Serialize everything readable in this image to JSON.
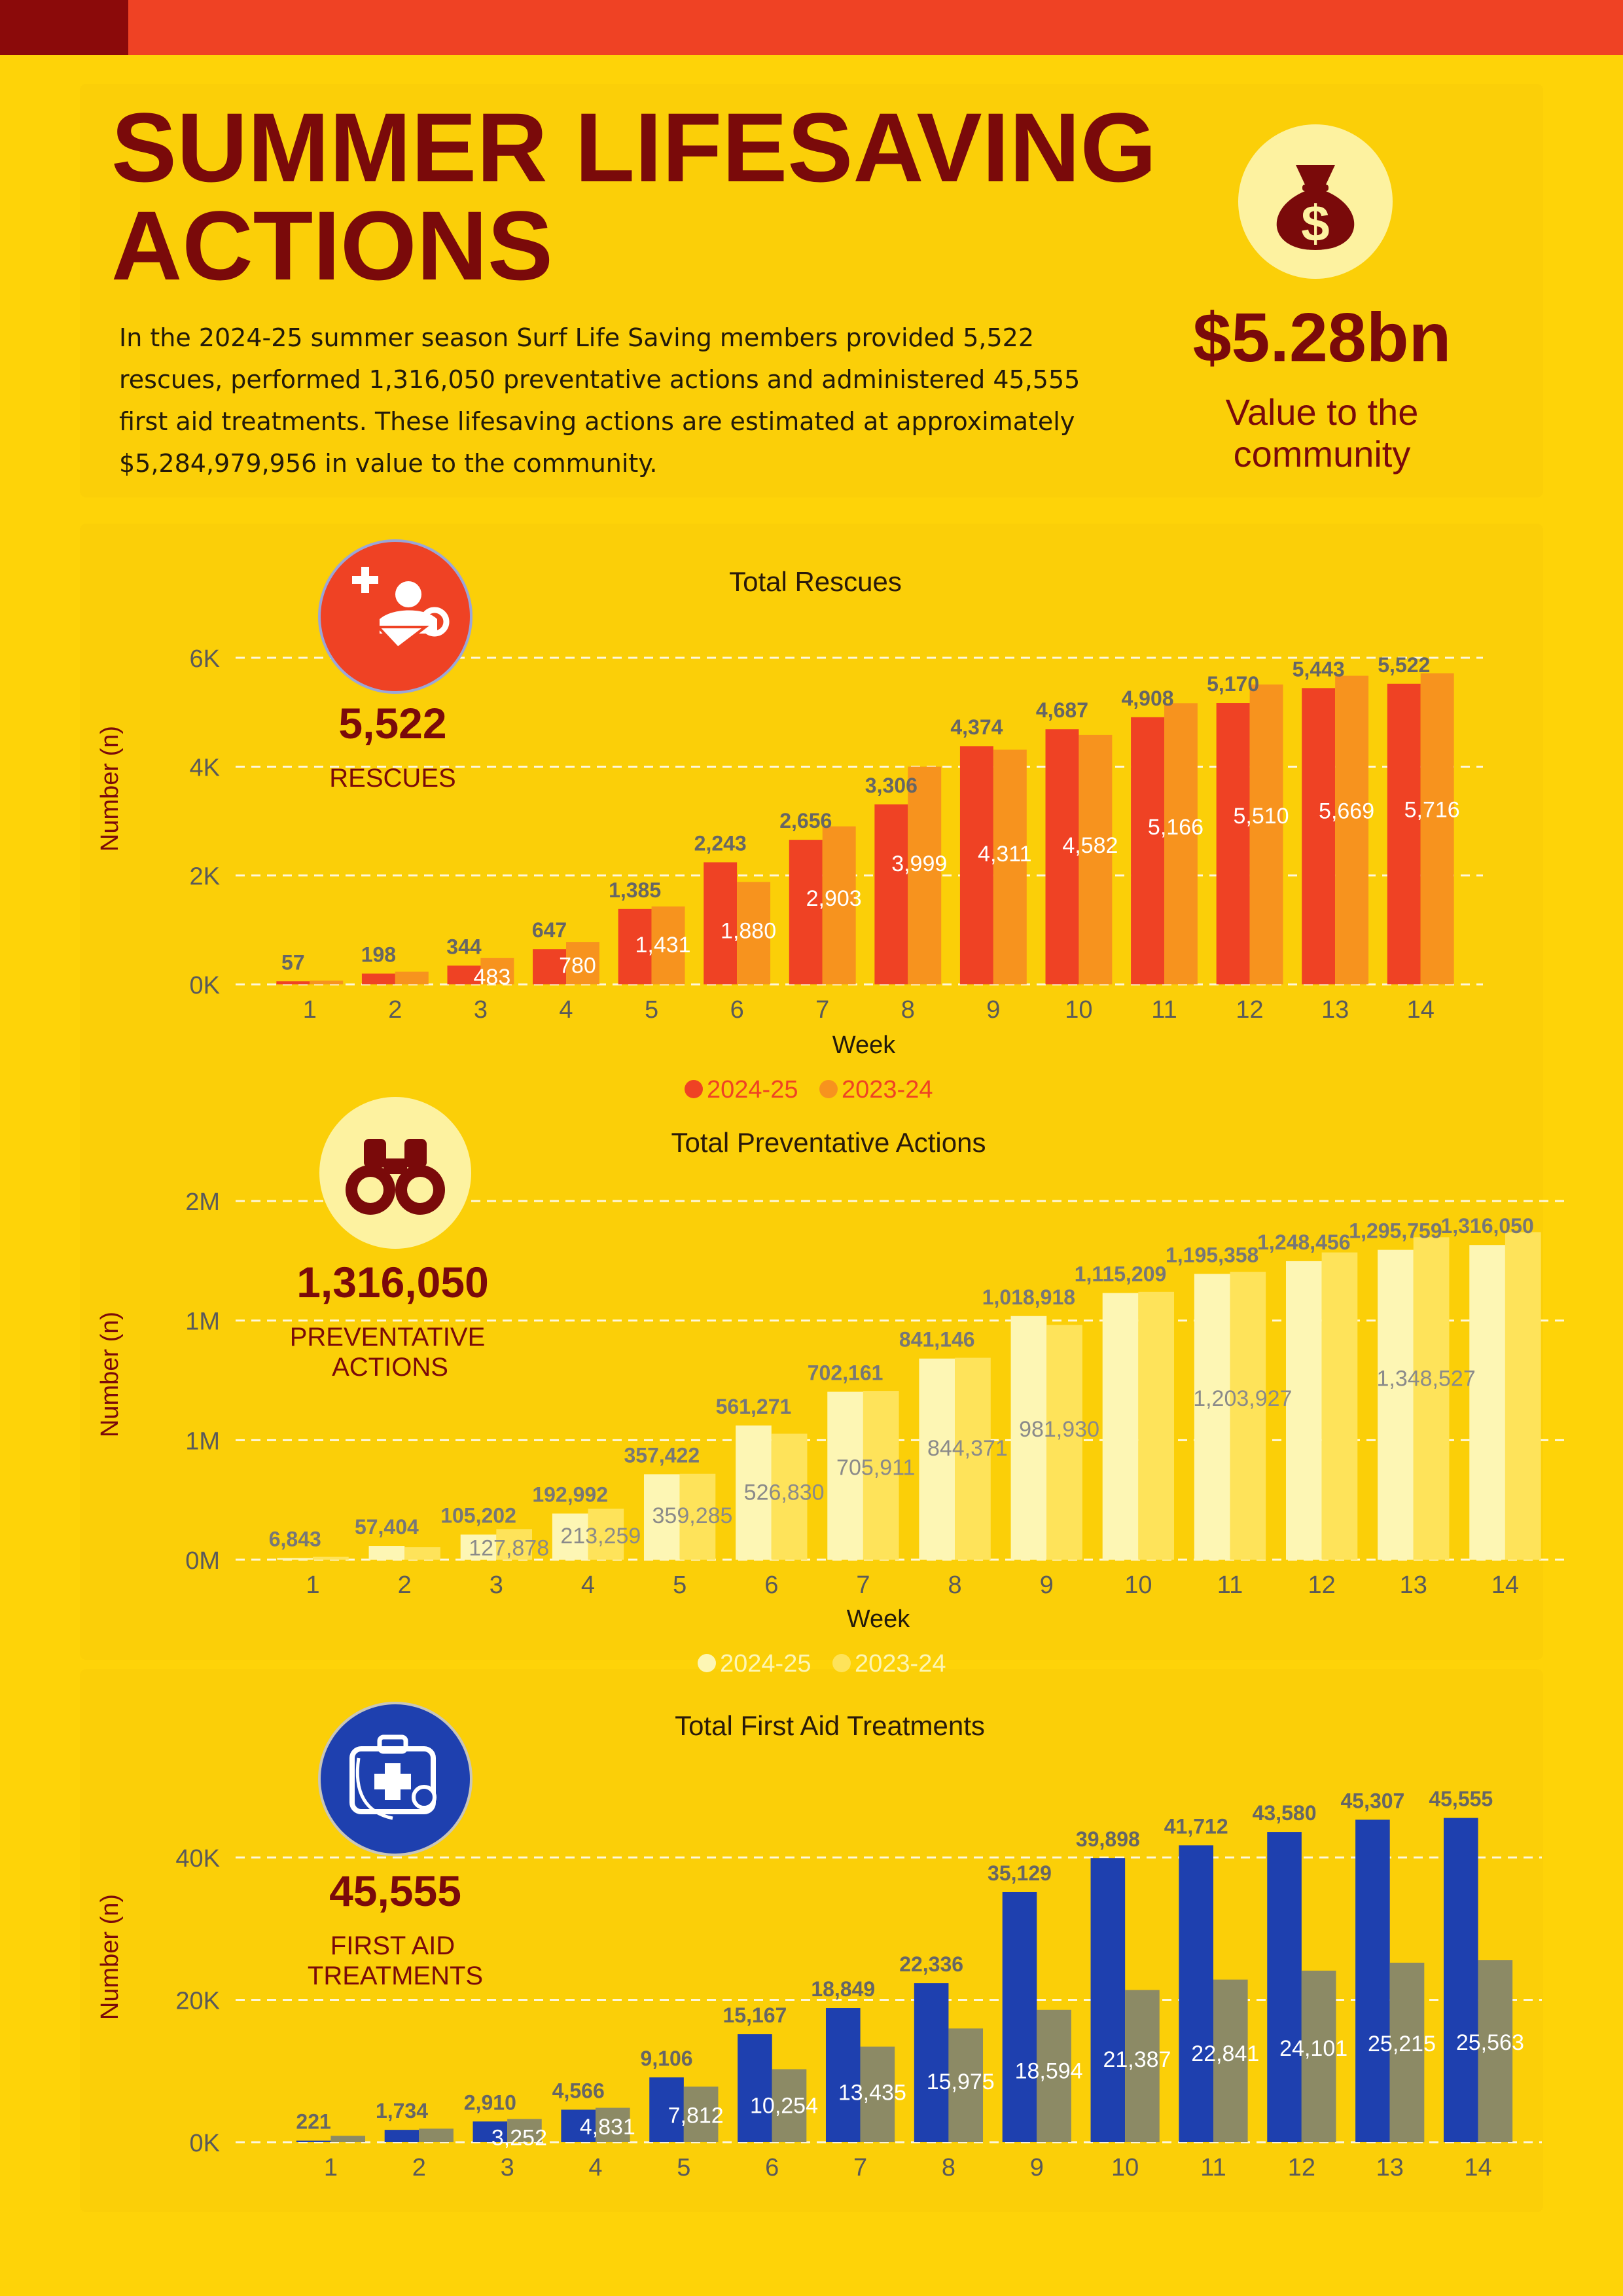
{
  "header": {
    "title_line1": "SUMMER LIFESAVING",
    "title_line2": "ACTIONS",
    "intro": "In the 2024-25 summer season Surf Life Saving members provided 5,522 rescues, performed 1,316,050 preventative actions and administered 45,555 first aid treatments. These lifesaving actions are estimated at approximately $5,284,979,956 in value to the community.",
    "stat_value": "$5.28bn",
    "stat_label_line1": "Value to the",
    "stat_label_line2": "community",
    "stat_icon": "money-bag-icon"
  },
  "colors": {
    "background": "#FED308",
    "dark_red": "#7A0A0A",
    "bar_rescue_2425": "#EF4224",
    "bar_rescue_2324": "#F7931E",
    "bar_prev_2425": "#FDF6B4",
    "bar_prev_2324": "#FEE35A",
    "bar_fa_2425": "#1E40AF",
    "bar_fa_2324": "#8C8A65"
  },
  "chart_data": [
    {
      "type": "bar",
      "title": "Total Rescues",
      "xlabel": "Week",
      "ylabel": "Number (n)",
      "categories": [
        "1",
        "2",
        "3",
        "4",
        "5",
        "6",
        "7",
        "8",
        "9",
        "10",
        "11",
        "12",
        "13",
        "14"
      ],
      "ylim": [
        0,
        6000
      ],
      "yticks": [
        0,
        2000,
        4000,
        6000
      ],
      "ytick_labels": [
        "0K",
        "2K",
        "4K",
        "6K"
      ],
      "grid": true,
      "legend_position": "bottom-center",
      "icon": "rescue-icon",
      "big_number": "5,522",
      "big_label": "RESCUES",
      "series": [
        {
          "name": "2024-25",
          "color": "#EF4224",
          "values": [
            57,
            198,
            344,
            647,
            1385,
            2243,
            2656,
            3306,
            4374,
            4687,
            4908,
            5170,
            5443,
            5522
          ],
          "labels": [
            "57",
            "198",
            "344",
            "647",
            "1,385",
            "2,243",
            "2,656",
            "3,306",
            "4,374",
            "4,687",
            "4,908",
            "5,170",
            "5,443",
            "5,522"
          ]
        },
        {
          "name": "2023-24",
          "color": "#F7931E",
          "values": [
            67,
            233,
            483,
            780,
            1431,
            1880,
            2903,
            3999,
            4311,
            4582,
            5166,
            5510,
            5669,
            5716
          ],
          "labels": [
            "",
            "",
            "483",
            "780",
            "1,431",
            "1,880",
            "2,903",
            "3,999",
            "4,311",
            "4,582",
            "5,166",
            "5,510",
            "5,669",
            "5,716"
          ]
        }
      ]
    },
    {
      "type": "bar",
      "title": "Total Preventative Actions",
      "xlabel": "Week",
      "ylabel": "Number (n)",
      "categories": [
        "1",
        "2",
        "3",
        "4",
        "5",
        "6",
        "7",
        "8",
        "9",
        "10",
        "11",
        "12",
        "13",
        "14"
      ],
      "ylim": [
        0,
        1500000
      ],
      "yticks": [
        0,
        500000,
        1000000,
        1500000
      ],
      "ytick_labels": [
        "0M",
        "1M",
        "1M",
        "2M"
      ],
      "grid": true,
      "legend_position": "bottom-center",
      "icon": "binoculars-icon",
      "big_number": "1,316,050",
      "big_label_line1": "PREVENTATIVE",
      "big_label_line2": "ACTIONS",
      "series": [
        {
          "name": "2024-25",
          "color": "#FDF6B4",
          "values": [
            6843,
            57404,
            105202,
            192992,
            357422,
            561271,
            702161,
            841146,
            1018918,
            1115209,
            1195358,
            1248456,
            1295759,
            1316050
          ],
          "labels": [
            "6,843",
            "57,404",
            "105,202",
            "192,992",
            "357,422",
            "561,271",
            "702,161",
            "841,146",
            "1,018,918",
            "1,115,209",
            "1,195,358",
            "1,248,456",
            "1,295,759",
            "1,316,050"
          ]
        },
        {
          "name": "2023-24",
          "color": "#FEE35A",
          "values": [
            12000,
            52000,
            127878,
            213259,
            359285,
            526830,
            705911,
            844371,
            981930,
            1120000,
            1203927,
            1285000,
            1348527,
            1370000
          ],
          "labels": [
            "",
            "",
            "127,878",
            "213,259",
            "359,285",
            "526,830",
            "705,911",
            "844,371",
            "981,930",
            "",
            "1,203,927",
            "",
            "1,348,527",
            ""
          ]
        }
      ]
    },
    {
      "type": "bar",
      "title": "Total First Aid Treatments",
      "xlabel": "",
      "ylabel": "Number (n)",
      "categories": [
        "1",
        "2",
        "3",
        "4",
        "5",
        "6",
        "7",
        "8",
        "9",
        "10",
        "11",
        "12",
        "13",
        "14"
      ],
      "ylim": [
        0,
        40000
      ],
      "yticks": [
        0,
        20000,
        40000
      ],
      "ytick_labels": [
        "0K",
        "20K",
        "40K"
      ],
      "grid": true,
      "icon": "first-aid-kit-icon",
      "big_number": "45,555",
      "big_label_line1": "FIRST AID",
      "big_label_line2": "TREATMENTS",
      "series": [
        {
          "name": "2024-25",
          "color": "#1E40AF",
          "values": [
            221,
            1734,
            2910,
            4566,
            9106,
            15167,
            18849,
            22336,
            35129,
            39898,
            41712,
            43580,
            45307,
            45555
          ],
          "labels": [
            "221",
            "1,734",
            "2,910",
            "4,566",
            "9,106",
            "15,167",
            "18,849",
            "22,336",
            "35,129",
            "39,898",
            "41,712",
            "43,580",
            "45,307",
            "45,555"
          ]
        },
        {
          "name": "2023-24",
          "color": "#8C8A65",
          "values": [
            900,
            1900,
            3252,
            4831,
            7812,
            10254,
            13435,
            15975,
            18594,
            21387,
            22841,
            24101,
            25215,
            25563
          ],
          "labels": [
            "",
            "",
            "3,252",
            "4,831",
            "7,812",
            "10,254",
            "13,435",
            "15,975",
            "18,594",
            "21,387",
            "22,841",
            "24,101",
            "25,215",
            "25,563"
          ]
        }
      ]
    }
  ]
}
